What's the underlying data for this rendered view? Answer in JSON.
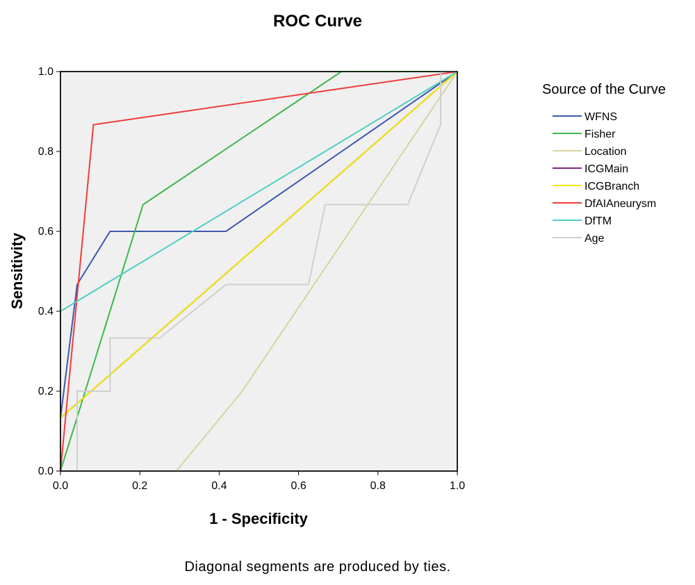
{
  "chart_data": {
    "type": "line",
    "title": "ROC Curve",
    "xlabel": "1 - Specificity",
    "ylabel": "Sensitivity",
    "xlim": [
      0,
      1
    ],
    "ylim": [
      0,
      1
    ],
    "xticks": [
      "0.0",
      "0.2",
      "0.4",
      "0.6",
      "0.8",
      "1.0"
    ],
    "yticks": [
      "0.0",
      "0.2",
      "0.4",
      "0.6",
      "0.8",
      "1.0"
    ],
    "grid": false,
    "legend_title": "Source of the Curve",
    "legend_position": "right",
    "footnote": "Diagonal segments are produced by ties.",
    "series": [
      {
        "name": "WFNS",
        "color": "#3f57b0",
        "points": [
          [
            0,
            0.133
          ],
          [
            0.042,
            0.467
          ],
          [
            0.125,
            0.6
          ],
          [
            0.417,
            0.6
          ],
          [
            1,
            1
          ]
        ]
      },
      {
        "name": "Fisher",
        "color": "#3cb84a",
        "points": [
          [
            0,
            0
          ],
          [
            0.208,
            0.667
          ],
          [
            0.708,
            1
          ],
          [
            1,
            1
          ]
        ]
      },
      {
        "name": "Location",
        "color": "#d9d2a0",
        "points": [
          [
            0.292,
            0
          ],
          [
            0.458,
            0.2
          ],
          [
            1,
            1
          ]
        ]
      },
      {
        "name": "ICGMain",
        "color": "#7a2a7a",
        "points": [
          [
            0,
            0.133
          ],
          [
            1,
            1
          ]
        ]
      },
      {
        "name": "ICGBranch",
        "color": "#f5e600",
        "points": [
          [
            0,
            0.133
          ],
          [
            1,
            1
          ]
        ]
      },
      {
        "name": "DfAIAneurysm",
        "color": "#f03c3c",
        "points": [
          [
            0,
            0
          ],
          [
            0.083,
            0.867
          ],
          [
            1,
            1
          ]
        ]
      },
      {
        "name": "DfTM",
        "color": "#4ccfc0",
        "points": [
          [
            0,
            0.4
          ],
          [
            1,
            1
          ]
        ]
      },
      {
        "name": "Age",
        "color": "#cfcfcf",
        "points": [
          [
            0.042,
            0
          ],
          [
            0.042,
            0.2
          ],
          [
            0.125,
            0.2
          ],
          [
            0.125,
            0.333
          ],
          [
            0.25,
            0.333
          ],
          [
            0.417,
            0.467
          ],
          [
            0.625,
            0.467
          ],
          [
            0.667,
            0.667
          ],
          [
            0.875,
            0.667
          ],
          [
            0.958,
            0.867
          ],
          [
            0.958,
            1
          ],
          [
            1,
            1
          ]
        ]
      }
    ]
  }
}
